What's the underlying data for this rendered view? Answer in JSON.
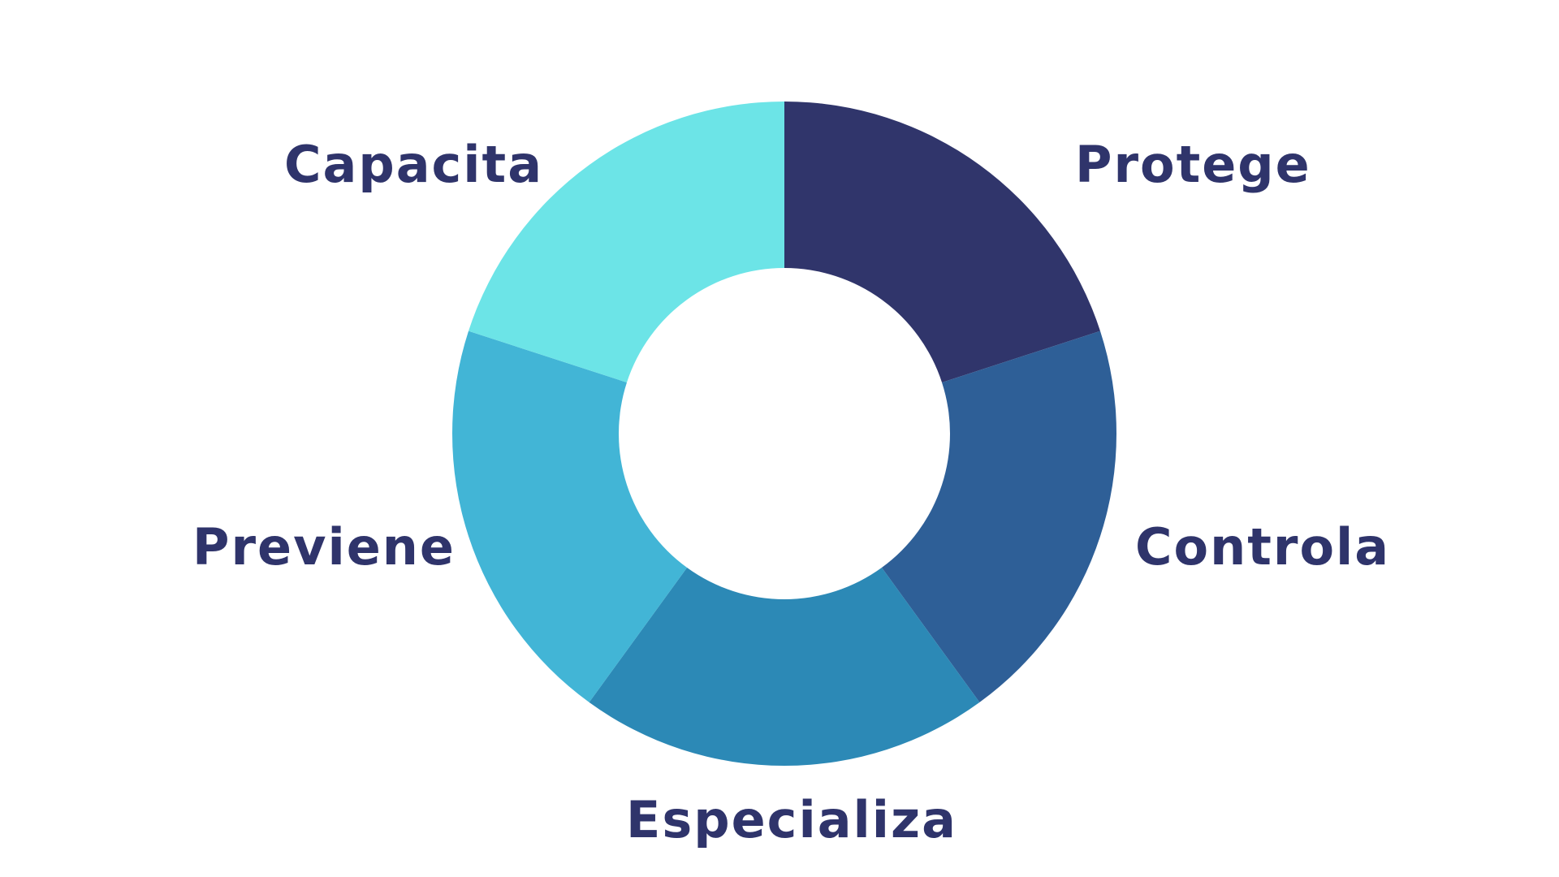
{
  "diagram": {
    "type": "donut",
    "text_color": "#2f346b",
    "segments": [
      {
        "label": "Protege",
        "color": "#30356b",
        "share": 0.2
      },
      {
        "label": "Controla",
        "color": "#2e5f97",
        "share": 0.2
      },
      {
        "label": "Especializa",
        "color": "#2c89b6",
        "share": 0.2
      },
      {
        "label": "Previene",
        "color": "#42b5d6",
        "share": 0.2
      },
      {
        "label": "Capacita",
        "color": "#6ce4e7",
        "share": 0.2
      }
    ]
  }
}
